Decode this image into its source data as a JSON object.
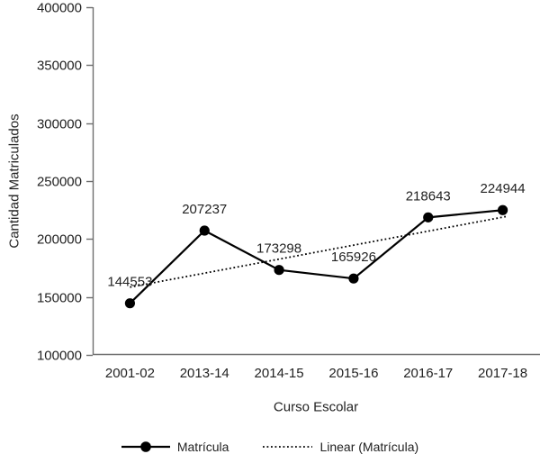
{
  "chart_data": {
    "type": "line",
    "title": "",
    "xlabel": "Curso Escolar",
    "ylabel": "Cantidad Matriculados",
    "categories": [
      "2001-02",
      "2013-14",
      "2014-15",
      "2015-16",
      "2016-17",
      "2017-18"
    ],
    "series": [
      {
        "name": "Matrícula",
        "type": "line",
        "values": [
          144553,
          207237,
          173298,
          165926,
          218643,
          224944
        ],
        "line_style": "solid",
        "marker": "filled-circle",
        "color": "#000000",
        "data_labels": [
          "144553",
          "207237",
          "173298",
          "165926",
          "218643",
          "224944"
        ]
      },
      {
        "name": "Linear (Matrícula)",
        "type": "trendline",
        "endpoint_values": [
          158471,
          219729
        ],
        "line_style": "dotted",
        "color": "#000000"
      }
    ],
    "ylim": [
      100000,
      400000
    ],
    "yticks": [
      400000,
      350000,
      300000,
      250000,
      200000,
      150000,
      100000
    ],
    "ytick_labels": [
      "400000",
      "350000",
      "300000",
      "250000",
      "200000",
      "150000",
      "100000"
    ],
    "grid": false,
    "legend_position": "bottom",
    "colors": {
      "background": "#ffffff",
      "series_line": "#000000",
      "trendline": "#000000",
      "axis_line": "#6e6e6e",
      "text": "#222222"
    }
  }
}
